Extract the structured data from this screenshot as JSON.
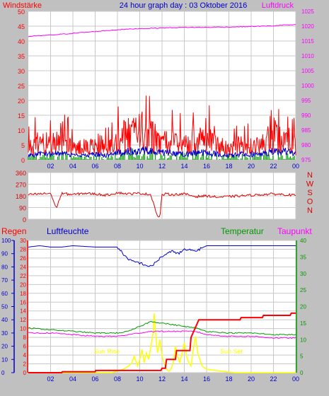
{
  "header": {
    "left_label": "Windstärke",
    "title": "24 hour graph day : 03 Oktober 2016",
    "right_label": "Luftdruck"
  },
  "colors": {
    "background": "#c0c0c0",
    "plot_bg": "#ffffff",
    "grid": "#c8c8c8",
    "wind": "#ff0000",
    "wind_avg": "#0000cc",
    "wind_green": "#009900",
    "pressure": "#ff00ff",
    "direction": "#dd0000",
    "rain": "#ff0000",
    "humidity": "#0000cc",
    "temperature": "#009900",
    "dewpoint": "#ff00ff",
    "sun": "#ffff00",
    "title": "#0000cc"
  },
  "chart_data": [
    {
      "type": "line",
      "name": "wind-pressure",
      "left_axis": {
        "label": "Windstärke",
        "ticks": [
          0,
          5,
          10,
          15,
          20,
          25,
          30,
          35,
          40,
          45,
          50
        ],
        "range": [
          0,
          50
        ]
      },
      "right_axis": {
        "label": "Luftdruck",
        "ticks": [
          975,
          980,
          985,
          990,
          995,
          1000,
          1005,
          1010,
          1015,
          1020,
          1025
        ],
        "range": [
          975,
          1025
        ]
      },
      "x_ticks": [
        "02",
        "04",
        "06",
        "08",
        "10",
        "12",
        "14",
        "16",
        "18",
        "20",
        "22",
        "00"
      ],
      "grid": true,
      "series": [
        {
          "key": "pressure",
          "axis": "right",
          "x": [
            0,
            1,
            2,
            3,
            4,
            5,
            6,
            7,
            8,
            9,
            10,
            11,
            12,
            13,
            14,
            15,
            16,
            17,
            18,
            19,
            20,
            21,
            22,
            23,
            24
          ],
          "values": [
            1016.5,
            1016.8,
            1017.0,
            1017.3,
            1017.6,
            1017.9,
            1018.2,
            1018.5,
            1018.8,
            1019.0,
            1019.2,
            1019.3,
            1019.4,
            1019.5,
            1019.6,
            1019.6,
            1019.6,
            1019.7,
            1019.7,
            1019.8,
            1019.9,
            1020.0,
            1020.1,
            1020.4,
            1020.4
          ]
        },
        {
          "key": "wind_gust",
          "axis": "left",
          "x": [
            0,
            1,
            2,
            3,
            4,
            5,
            6,
            7,
            8,
            9,
            10,
            11,
            12,
            13,
            14,
            15,
            16,
            17,
            18,
            19,
            20,
            21,
            22,
            23,
            24
          ],
          "values": [
            6,
            11,
            8,
            13,
            6,
            7,
            9,
            7,
            10,
            15,
            17,
            14,
            9,
            11,
            8,
            10,
            11,
            8,
            6,
            8,
            7,
            8,
            14,
            12,
            9
          ]
        },
        {
          "key": "wind_avg",
          "axis": "left",
          "x": [
            0,
            1,
            2,
            3,
            4,
            5,
            6,
            7,
            8,
            9,
            10,
            11,
            12,
            13,
            14,
            15,
            16,
            17,
            18,
            19,
            20,
            21,
            22,
            23,
            24
          ],
          "values": [
            1.5,
            2,
            2,
            2.5,
            1.5,
            1.5,
            2,
            1.5,
            2.5,
            3,
            3.5,
            3,
            2.5,
            2.5,
            2,
            2.5,
            2.5,
            2,
            1.5,
            2,
            2,
            2,
            3,
            3,
            2
          ]
        }
      ]
    },
    {
      "type": "line",
      "name": "wind-direction",
      "left_axis": {
        "ticks": [
          0,
          90,
          180,
          270,
          360
        ],
        "range": [
          0,
          360
        ]
      },
      "right_labels": [
        "N",
        "W",
        "S",
        "O",
        "N"
      ],
      "grid": true,
      "series": [
        {
          "key": "direction",
          "x": [
            0,
            1,
            2,
            2.5,
            3,
            3.5,
            4,
            5,
            6,
            7,
            8,
            9,
            10,
            11,
            11.6,
            11.8,
            12,
            12.3,
            13,
            14,
            15,
            16,
            17,
            18,
            19,
            20,
            21,
            22,
            23,
            24
          ],
          "values": [
            190,
            195,
            200,
            85,
            200,
            195,
            190,
            200,
            195,
            185,
            205,
            195,
            200,
            190,
            20,
            15,
            185,
            195,
            190,
            195,
            175,
            180,
            170,
            175,
            180,
            185,
            190,
            195,
            190,
            185
          ]
        }
      ]
    },
    {
      "type": "line",
      "name": "rain-humidity-temperature",
      "labels": {
        "rain": "Regen",
        "humidity": "Luftfeuchte",
        "temperature": "Temperatur",
        "dewpoint": "Taupunkt"
      },
      "axis_humidity": {
        "ticks": [
          0,
          10,
          20,
          30,
          40,
          50,
          60,
          70,
          80,
          90,
          100
        ],
        "range": [
          0,
          100
        ]
      },
      "axis_rain": {
        "ticks": [
          0,
          2,
          4,
          6,
          8,
          10,
          12,
          14,
          16,
          18,
          20,
          22,
          24,
          26,
          28,
          30
        ],
        "range": [
          0,
          30
        ]
      },
      "axis_temp": {
        "ticks": [
          0,
          5,
          10,
          15,
          20,
          25,
          30,
          35,
          40
        ],
        "range": [
          0,
          40
        ]
      },
      "x_ticks": [
        "02",
        "04",
        "06",
        "08",
        "10",
        "12",
        "14",
        "16",
        "18",
        "20",
        "22",
        "00"
      ],
      "annotations": [
        "Sun Rise",
        "Sun Set"
      ],
      "grid": true,
      "series": [
        {
          "key": "humidity",
          "axis": "humidity",
          "x": [
            0,
            1,
            2,
            3,
            4,
            6,
            8,
            8.5,
            9,
            9.5,
            10,
            11,
            11.5,
            12,
            13,
            13.5,
            14,
            15,
            16,
            18,
            20,
            22,
            24
          ],
          "values": [
            95,
            96,
            95,
            95,
            96,
            95,
            95,
            90,
            85,
            84,
            83,
            80,
            84,
            88,
            92,
            90,
            93,
            92,
            96,
            96,
            96,
            96,
            96
          ]
        },
        {
          "key": "temperature",
          "axis": "temp",
          "x": [
            0,
            2,
            4,
            6,
            8,
            9,
            10,
            11,
            12,
            13,
            14,
            15,
            16,
            18,
            20,
            22,
            24
          ],
          "values": [
            13.5,
            13,
            12.5,
            12,
            12,
            12.5,
            14,
            15.5,
            15,
            14.5,
            14,
            13.5,
            12.5,
            12,
            12,
            11.5,
            11.5
          ]
        },
        {
          "key": "dewpoint",
          "axis": "temp",
          "x": [
            0,
            2,
            4,
            6,
            8,
            9,
            10,
            11,
            12,
            13,
            14,
            15,
            16,
            18,
            20,
            22,
            24
          ],
          "values": [
            12,
            12,
            11.5,
            11,
            11,
            11.5,
            12,
            12.5,
            12.5,
            12.5,
            12.5,
            12.5,
            11.5,
            11,
            11,
            10.5,
            10.5
          ]
        },
        {
          "key": "rain",
          "axis": "rain",
          "x": [
            0,
            3,
            3.05,
            6,
            6.05,
            11.9,
            12,
            12.3,
            12.4,
            13.2,
            13.3,
            14.5,
            14.6,
            15.3,
            15.6,
            19,
            19.1,
            21,
            21.1,
            23.5,
            23.6,
            24
          ],
          "values": [
            0,
            0,
            0.2,
            0.2,
            0.5,
            0.5,
            1,
            1,
            3,
            3,
            5,
            5,
            8,
            12,
            12,
            12,
            12.5,
            12.5,
            13,
            13,
            13.5,
            13.5
          ]
        },
        {
          "key": "sun",
          "axis": "temp",
          "x": [
            0,
            7.5,
            8,
            8.5,
            9,
            9.3,
            9.5,
            9.8,
            10,
            10.2,
            10.4,
            10.6,
            10.8,
            11,
            11.2,
            11.3,
            11.5,
            11.6,
            11.8,
            12,
            12.2,
            12.4,
            12.6,
            12.8,
            13,
            13.2,
            13.4,
            13.6,
            13.8,
            14,
            14.2,
            14.4,
            14.6,
            14.8,
            15,
            15.2,
            15.4,
            15.6,
            15.8,
            16,
            16.5,
            17,
            17.5,
            18,
            18.5,
            24
          ],
          "values": [
            0,
            0,
            0.5,
            1,
            2,
            3,
            5,
            2,
            4,
            7,
            3,
            6,
            4,
            8,
            12,
            18,
            9,
            6,
            10,
            5,
            3,
            1,
            0.5,
            1,
            3,
            8,
            5,
            3,
            6,
            9,
            5,
            3,
            2,
            7,
            11,
            6,
            4,
            2,
            1.5,
            1,
            0.8,
            0.6,
            0.4,
            0.2,
            0,
            0
          ]
        }
      ]
    }
  ]
}
